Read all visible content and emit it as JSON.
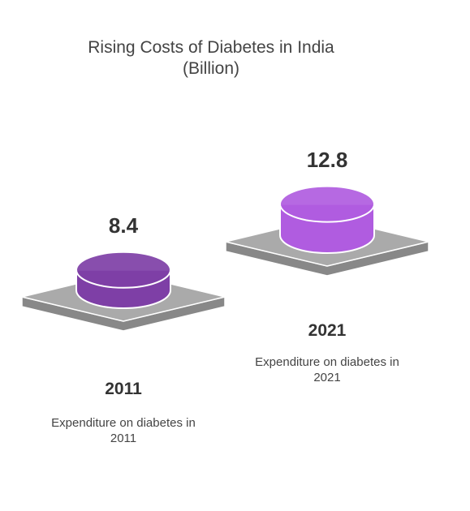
{
  "chart_data": {
    "type": "bar",
    "title": "Rising Costs of Diabetes in India",
    "subtitle": "(Billion)",
    "categories": [
      "2011",
      "2021"
    ],
    "values": [
      8.4,
      12.8
    ],
    "descriptions": [
      "Expenditure on diabetes in 2011",
      "Expenditure on diabetes in 2021"
    ],
    "colors": [
      "#7e3fa6",
      "#b05ce0"
    ]
  }
}
